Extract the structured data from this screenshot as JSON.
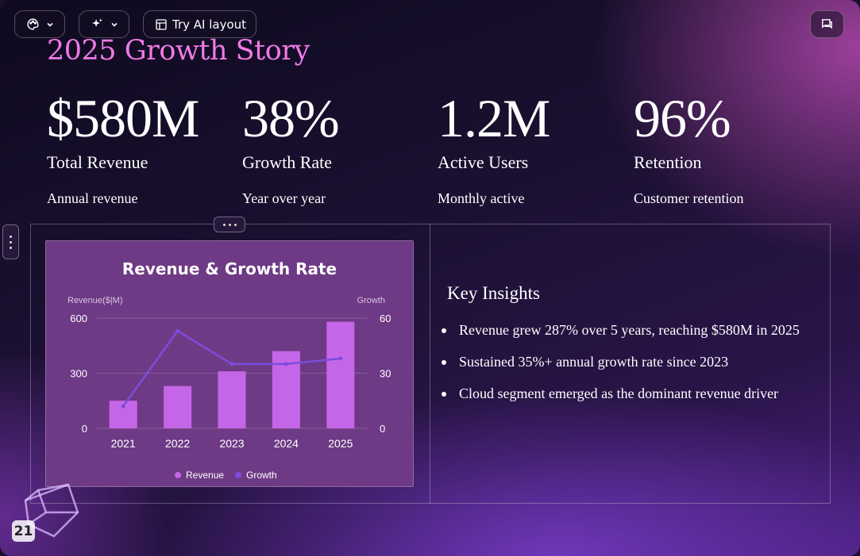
{
  "toolbar": {
    "theme_icon": "palette-icon",
    "ai_icon": "sparkle-icon",
    "layout_icon": "layout-icon",
    "layout_label": "Try AI layout",
    "comment_icon": "comment-icon"
  },
  "slide": {
    "title": "2025 Growth Story",
    "page_number": "21",
    "stats": [
      {
        "value": "$580M",
        "label": "Total Revenue",
        "sub": "Annual revenue"
      },
      {
        "value": "38%",
        "label": "Growth Rate",
        "sub": "Year over year"
      },
      {
        "value": "1.2M",
        "label": "Active Users",
        "sub": "Monthly active"
      },
      {
        "value": "96%",
        "label": "Retention",
        "sub": "Customer retention"
      }
    ],
    "insights": {
      "title": "Key Insights",
      "items": [
        "Revenue grew 287% over 5 years, reaching $580M in 2025",
        "Sustained 35%+ annual growth rate since 2023",
        "Cloud segment emerged as the dominant revenue driver"
      ]
    }
  },
  "colors": {
    "title": "#f07ae6",
    "bar": "#c566e8",
    "line": "#7c4ddb",
    "card": "#6e3a85"
  },
  "chart_data": {
    "type": "bar",
    "title": "Revenue & Growth Rate",
    "categories": [
      "2021",
      "2022",
      "2023",
      "2024",
      "2025"
    ],
    "ylabel": "Revenue($|M)",
    "y2label": "Growth",
    "ylim": [
      0,
      600
    ],
    "y2lim": [
      0,
      60
    ],
    "yticks": [
      "0",
      "300",
      "600"
    ],
    "y2ticks": [
      "0",
      "30",
      "60"
    ],
    "grid": true,
    "legend": "bottom",
    "series": [
      {
        "name": "Revenue",
        "type": "bar",
        "axis": "left",
        "values": [
          150,
          230,
          310,
          420,
          580
        ]
      },
      {
        "name": "Growth",
        "type": "line",
        "axis": "right",
        "values": [
          12,
          53,
          35,
          35,
          38
        ]
      }
    ]
  }
}
